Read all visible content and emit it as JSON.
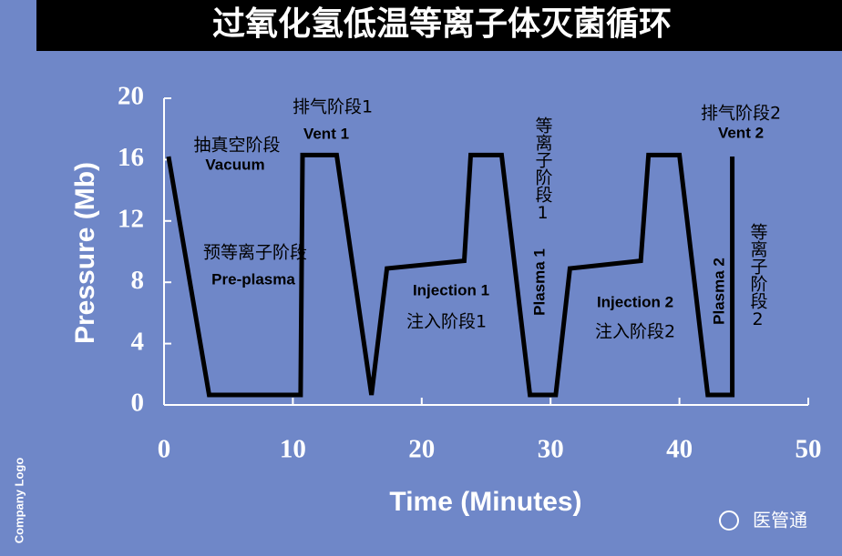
{
  "chart_data": {
    "type": "line",
    "title": "过氧化氢低温等离子体灭菌循环",
    "x_label": "Time (Minutes)",
    "y_label": "Pressure (Mb)",
    "xlim": [
      0,
      50
    ],
    "xticks": [
      0,
      10,
      20,
      30,
      40,
      50
    ],
    "ylim": [
      0,
      20
    ],
    "yticks": [
      0,
      4,
      8,
      12,
      16,
      20
    ],
    "series": [
      {
        "color": "#000000",
        "x": [
          0.35,
          3.5,
          10.6,
          10.75,
          13.4,
          16.1,
          17.3,
          23.3,
          23.8,
          26.2,
          28.4,
          30.4,
          31.5,
          37.0,
          37.6,
          40.0,
          42.2,
          44.1,
          44.1
        ],
        "values": [
          16.2,
          0.65,
          0.65,
          16.3,
          16.3,
          0.65,
          8.9,
          9.4,
          16.3,
          16.3,
          0.65,
          0.65,
          8.9,
          9.4,
          16.3,
          16.3,
          0.65,
          0.65,
          16.2
        ]
      }
    ],
    "annotations": [
      "排气阶段1",
      "Vent 1",
      "抽真空阶段",
      "Vacuum",
      "预等离子阶段",
      "Pre-plasma",
      "Injection 1",
      "注入阶段1",
      "等离子阶段1",
      "Plasma 1",
      "Injection 2",
      "注入阶段2",
      "排气阶段2",
      "Vent 2",
      "Plasma 2",
      "等离子阶段2"
    ],
    "footer_left": "Company Logo",
    "watermark": "医管通"
  }
}
